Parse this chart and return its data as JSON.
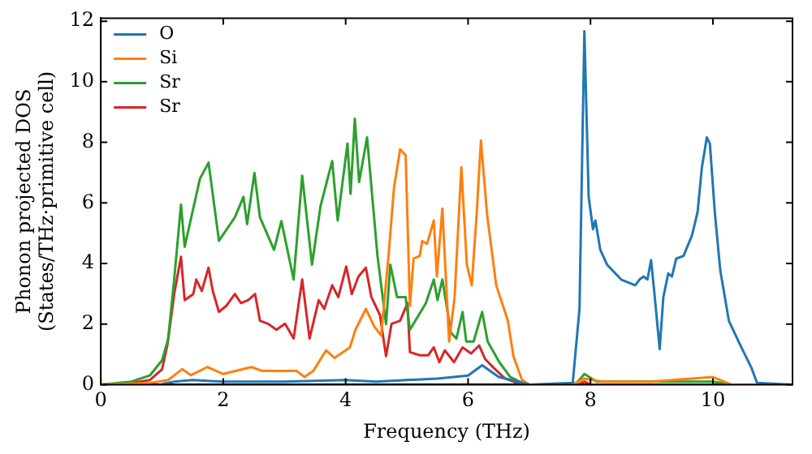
{
  "chart_data": {
    "type": "line",
    "xlabel": "Frequency (THz)",
    "ylabel": "Phonon projected DOS\n(States/THz·primitive cell)",
    "xlim": [
      0,
      11.3
    ],
    "ylim": [
      0,
      12.1
    ],
    "xticks": [
      0,
      2,
      4,
      6,
      8,
      10
    ],
    "yticks": [
      0,
      2,
      4,
      6,
      8,
      10,
      12
    ],
    "legend": "top left",
    "marker": "none",
    "grid": false,
    "series": [
      {
        "name": "O",
        "color": "#1f77b4",
        "x": [
          1.0,
          1.2,
          1.5,
          2.0,
          3.0,
          4.0,
          4.5,
          5.0,
          5.5,
          6.0,
          6.23,
          6.5,
          7.0,
          7.71,
          7.82,
          7.9,
          7.97,
          8.04,
          8.08,
          8.16,
          8.27,
          8.36,
          8.5,
          8.73,
          8.8,
          8.87,
          8.93,
          8.99,
          9.05,
          9.13,
          9.19,
          9.27,
          9.33,
          9.4,
          9.52,
          9.66,
          9.75,
          9.82,
          9.9,
          9.95,
          10.03,
          10.12,
          10.26,
          10.44,
          10.63,
          10.72,
          11.3
        ],
        "values": [
          0.02,
          0.1,
          0.15,
          0.1,
          0.1,
          0.15,
          0.1,
          0.15,
          0.2,
          0.3,
          0.64,
          0.25,
          0,
          0.06,
          2.5,
          11.67,
          6.2,
          5.13,
          5.42,
          4.45,
          3.96,
          3.77,
          3.47,
          3.28,
          3.47,
          3.57,
          3.47,
          4.11,
          2.89,
          1.17,
          2.89,
          3.67,
          3.57,
          4.16,
          4.25,
          4.94,
          5.71,
          7.18,
          8.16,
          7.96,
          5.71,
          3.77,
          2.11,
          1.33,
          0.55,
          0.06,
          0
        ]
      },
      {
        "name": "Si",
        "color": "#ff7f0e",
        "x": [
          0,
          0.8,
          1.1,
          1.33,
          1.47,
          1.74,
          2.0,
          2.46,
          2.64,
          3.2,
          3.33,
          3.47,
          3.68,
          3.82,
          4.07,
          4.16,
          4.33,
          4.47,
          4.58,
          4.7,
          4.79,
          4.89,
          4.98,
          5.05,
          5.11,
          5.21,
          5.25,
          5.33,
          5.44,
          5.49,
          5.58,
          5.69,
          5.78,
          5.89,
          5.98,
          6.06,
          6.14,
          6.21,
          6.31,
          6.46,
          6.65,
          6.74,
          6.88,
          7.0,
          7.7,
          7.9,
          8.2,
          9.0,
          10.0,
          10.3,
          11.3
        ],
        "values": [
          0,
          0.05,
          0.15,
          0.51,
          0.31,
          0.58,
          0.35,
          0.58,
          0.45,
          0.45,
          0.25,
          0.45,
          1.13,
          0.88,
          1.23,
          1.81,
          2.5,
          1.91,
          1.62,
          4.25,
          6.5,
          7.77,
          7.57,
          2.6,
          4.16,
          4.25,
          4.74,
          4.65,
          5.42,
          3.57,
          5.81,
          1.42,
          2.89,
          7.18,
          3.96,
          3.28,
          5.62,
          8.06,
          5.62,
          3.28,
          2.11,
          0.94,
          0.16,
          0,
          0,
          0.2,
          0.1,
          0.1,
          0.25,
          0,
          0
        ]
      },
      {
        "name": "Sr",
        "color": "#2ca02c",
        "x": [
          0,
          0.5,
          0.8,
          1.0,
          1.1,
          1.2,
          1.31,
          1.37,
          1.62,
          1.76,
          1.93,
          2.19,
          2.33,
          2.39,
          2.51,
          2.6,
          2.83,
          2.95,
          3.15,
          3.29,
          3.45,
          3.59,
          3.78,
          3.87,
          4.03,
          4.08,
          4.15,
          4.22,
          4.35,
          4.52,
          4.66,
          4.73,
          4.84,
          4.98,
          5.05,
          5.31,
          5.44,
          5.5,
          5.58,
          5.72,
          5.81,
          5.91,
          5.97,
          6.09,
          6.23,
          6.32,
          6.51,
          6.69,
          6.88,
          7.0,
          7.75,
          7.9,
          8.1,
          9.0,
          10.0,
          10.3,
          11.3
        ],
        "values": [
          0,
          0.1,
          0.3,
          0.8,
          1.5,
          3.5,
          5.95,
          4.55,
          6.8,
          7.33,
          4.75,
          5.52,
          6.2,
          5.3,
          6.99,
          5.52,
          4.45,
          5.4,
          3.47,
          6.9,
          3.96,
          5.9,
          7.38,
          5.42,
          7.96,
          6.3,
          8.78,
          6.69,
          8.16,
          4.25,
          2.0,
          3.96,
          2.89,
          2.89,
          1.81,
          2.69,
          3.47,
          2.79,
          3.47,
          1.71,
          1.52,
          2.4,
          1.42,
          1.42,
          2.4,
          1.42,
          0.74,
          0.25,
          0.06,
          0,
          0,
          0.35,
          0.1,
          0.1,
          0.1,
          0,
          0
        ]
      },
      {
        "name": "Sr",
        "color": "#d62728",
        "x": [
          0,
          0.5,
          0.8,
          1.0,
          1.09,
          1.2,
          1.31,
          1.37,
          1.51,
          1.56,
          1.65,
          1.76,
          1.83,
          1.93,
          2.05,
          2.19,
          2.29,
          2.41,
          2.52,
          2.6,
          2.73,
          2.87,
          3.01,
          3.15,
          3.29,
          3.41,
          3.56,
          3.65,
          3.78,
          3.88,
          4.01,
          4.1,
          4.21,
          4.33,
          4.42,
          4.56,
          4.66,
          4.75,
          4.89,
          5.01,
          5.05,
          5.21,
          5.35,
          5.44,
          5.53,
          5.62,
          5.77,
          5.91,
          6.05,
          6.18,
          6.28,
          6.42,
          6.6,
          6.79,
          7.0,
          7.8,
          7.9,
          8.0,
          11.3
        ],
        "values": [
          0,
          0.05,
          0.15,
          0.5,
          1.33,
          3.0,
          4.22,
          2.79,
          2.99,
          3.47,
          3.09,
          3.86,
          3.09,
          2.4,
          2.6,
          2.99,
          2.69,
          2.79,
          2.99,
          2.11,
          2.01,
          1.81,
          2.01,
          1.52,
          3.47,
          1.52,
          2.79,
          2.5,
          3.28,
          2.89,
          3.9,
          2.99,
          3.57,
          3.86,
          2.89,
          2.3,
          0.94,
          2.01,
          2.11,
          2.69,
          1.07,
          0.97,
          0.97,
          1.23,
          0.74,
          1.13,
          0.74,
          1.23,
          1.03,
          1.29,
          0.84,
          0.55,
          0.21,
          0.06,
          0,
          0,
          0.1,
          0,
          0
        ]
      }
    ]
  }
}
